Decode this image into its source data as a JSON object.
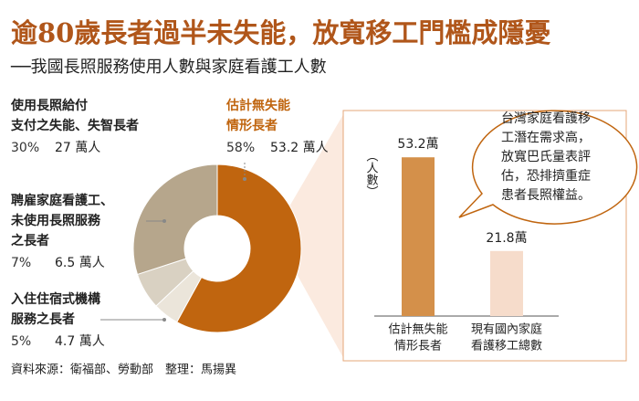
{
  "header": {
    "title": "逾80歲長者過半未失能，放寬移工門檻成隱憂",
    "subtitle": "──我國長照服務使用人數與家庭看護工人數"
  },
  "chart_data": [
    {
      "type": "pie",
      "categories": [
        [
          "估計無失能",
          "情形長者"
        ],
        [
          "入住住宿式機構",
          "服務之長者"
        ],
        [
          "聘雇家庭看護工、",
          "未使用長照服務",
          "之長者"
        ],
        [
          "使用長照給付",
          "支付之失能、失智長者"
        ]
      ],
      "values": [
        58,
        5,
        7,
        30
      ],
      "value_labels": [
        "58%",
        "5%",
        "7%",
        "30%"
      ],
      "people_labels": [
        "53.2 萬人",
        "4.7 萬人",
        "6.5 萬人",
        "27 萬人"
      ],
      "colors": [
        "#c0650f",
        "#ebe5da",
        "#d9d1c2",
        "#b6a68c"
      ]
    },
    {
      "type": "bar",
      "y_label": "（人數）",
      "categories": [
        [
          "估計無失能",
          "情形長者"
        ],
        [
          "現有國內家庭",
          "看護移工總數"
        ]
      ],
      "values": [
        53.2,
        21.8
      ],
      "value_labels": [
        "53.2萬",
        "21.8萬"
      ],
      "colors": [
        "#d4904a",
        "#f6dccb"
      ],
      "ylim": [
        0,
        60
      ],
      "annotation": [
        "台灣家庭看護移",
        "工潛在需求高，",
        "放寬巴氏量表評",
        "估，恐排擠重症",
        "患者長照權益。"
      ]
    }
  ],
  "footer": {
    "source": "資料來源：衛福部、勞動部　整理：馬揚異"
  }
}
